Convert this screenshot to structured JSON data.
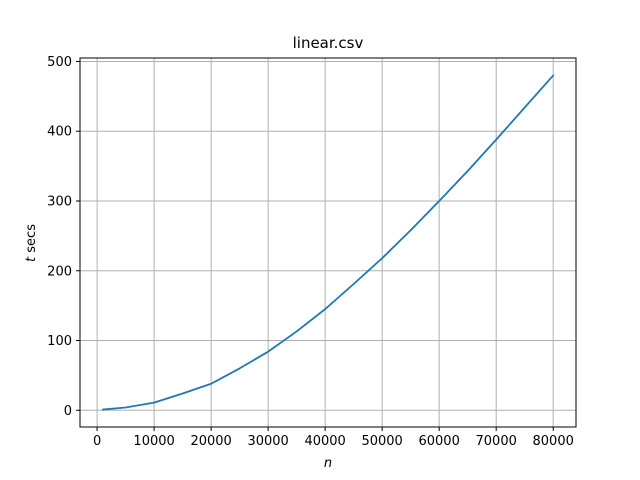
{
  "chart_data": {
    "type": "line",
    "title": "linear.csv",
    "xlabel": {
      "var": "n",
      "rest": ""
    },
    "ylabel": {
      "var": "t",
      "rest": " secs"
    },
    "xlim": [
      -3000,
      84000
    ],
    "ylim": [
      -24,
      505
    ],
    "xticks": [
      0,
      10000,
      20000,
      30000,
      40000,
      50000,
      60000,
      70000,
      80000
    ],
    "yticks": [
      0,
      100,
      200,
      300,
      400,
      500
    ],
    "grid": true,
    "series": [
      {
        "color": "#1f77b4",
        "x": [
          1000,
          5000,
          10000,
          15000,
          20000,
          25000,
          30000,
          35000,
          40000,
          45000,
          50000,
          55000,
          60000,
          65000,
          70000,
          75000,
          80000
        ],
        "y": [
          1,
          4,
          11,
          24,
          38,
          60,
          84,
          113,
          145,
          181,
          218,
          258,
          300,
          343,
          388,
          434,
          480
        ]
      }
    ]
  }
}
